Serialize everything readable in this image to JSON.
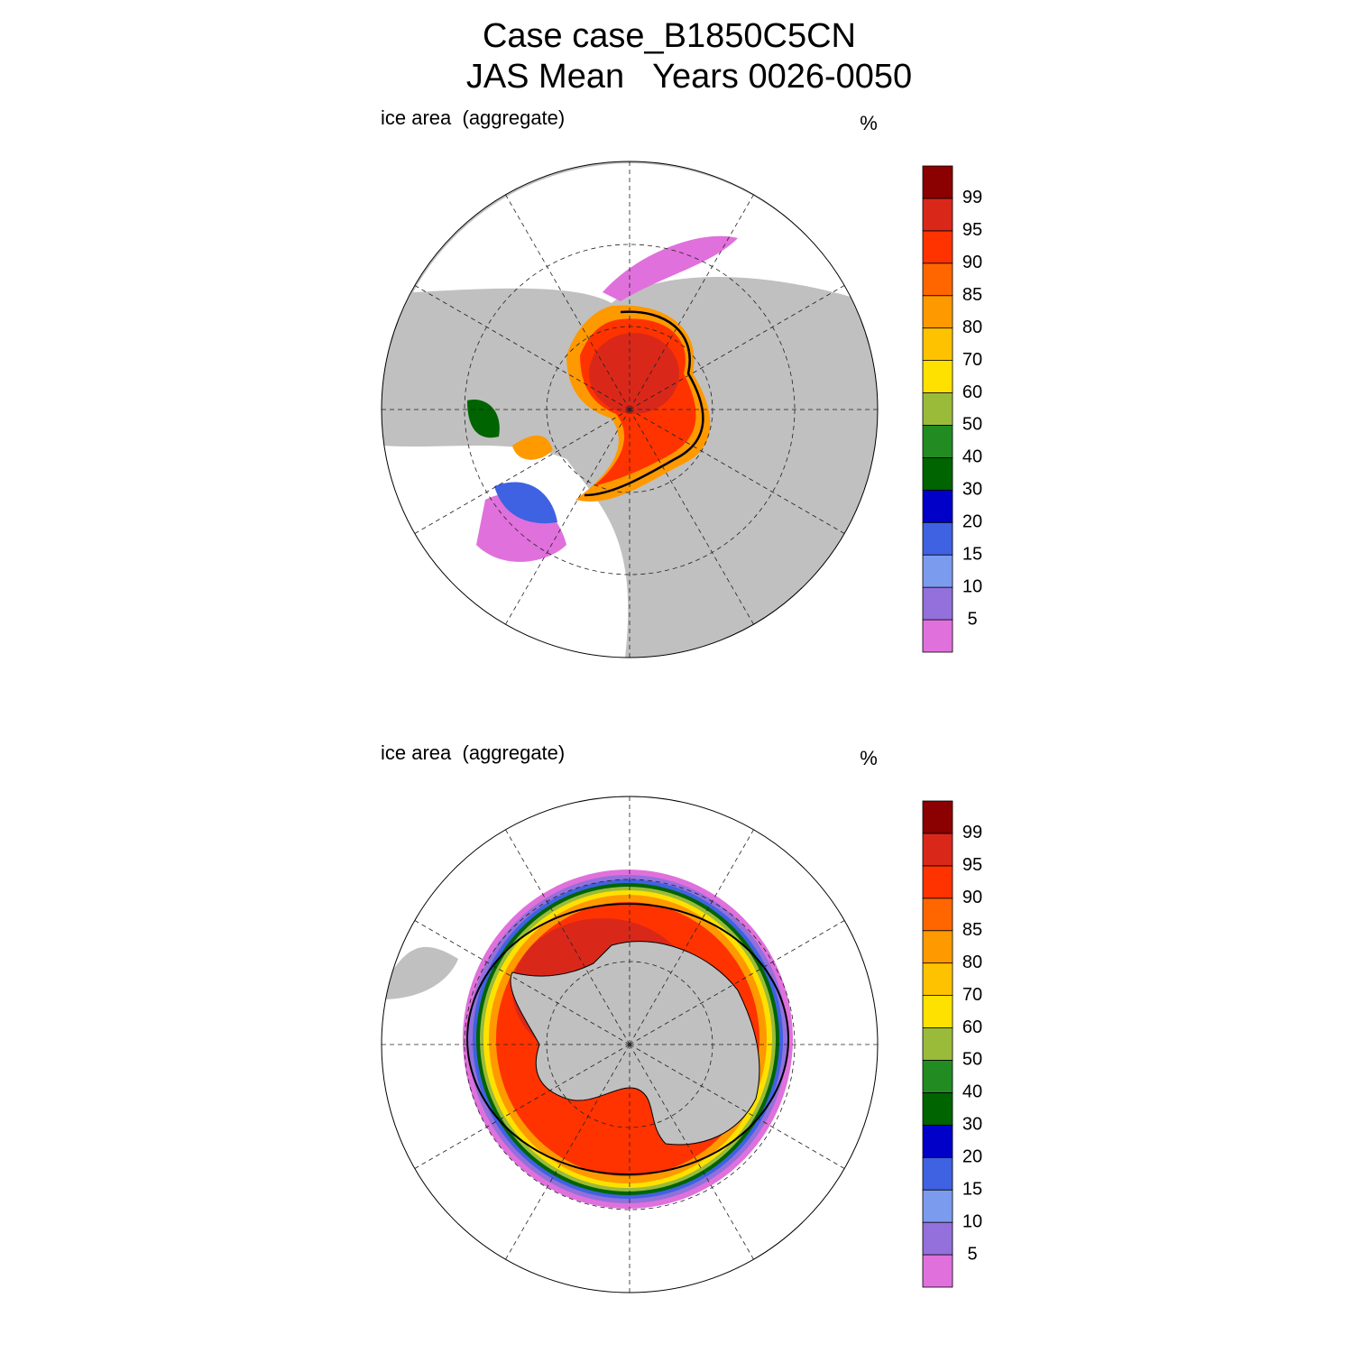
{
  "title": [
    "Case case_B1850C5CN",
    "JAS Mean   Years 0026-0050"
  ],
  "panels": [
    {
      "label": "ice area  (aggregate)",
      "units": "%"
    },
    {
      "label": "ice area  (aggregate)",
      "units": "%"
    }
  ],
  "colorbar": {
    "levels": [
      5,
      10,
      15,
      20,
      30,
      40,
      50,
      60,
      70,
      80,
      85,
      90,
      95,
      99
    ],
    "colors": [
      "#e070dc",
      "#9370db",
      "#7b9bef",
      "#3e62e2",
      "#0000c8",
      "#006400",
      "#228b22",
      "#9abb3a",
      "#ffe100",
      "#ffc200",
      "#ff9900",
      "#ff6600",
      "#ff3300",
      "#d9281a",
      "#8b0000"
    ]
  }
}
